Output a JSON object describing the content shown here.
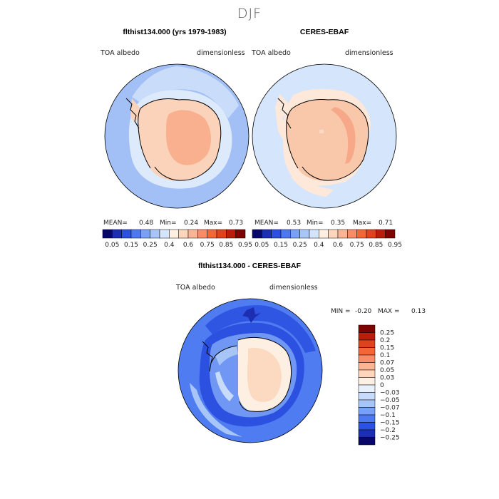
{
  "figure": {
    "season": "DJF"
  },
  "panels": [
    {
      "title": "flthist134.000 (yrs 1979-1983)",
      "variable": "TOA albedo",
      "units": "dimensionless",
      "mean_label": "MEAN=",
      "mean": "0.48",
      "min_label": "Min=",
      "min": "0.24",
      "max_label": "Max=",
      "max": "0.73"
    },
    {
      "title": "CERES-EBAF",
      "variable": "TOA albedo",
      "units": "dimensionless",
      "mean_label": "MEAN=",
      "mean": "0.53",
      "min_label": "Min=",
      "min": "0.35",
      "max_label": "Max=",
      "max": "0.71"
    }
  ],
  "colorbar_top": {
    "labels": [
      "0.05",
      "0.15",
      "0.25",
      "0.4",
      "0.6",
      "0.75",
      "0.85",
      "0.95"
    ],
    "colors": [
      "#08086a",
      "#1c2fb2",
      "#2c50e0",
      "#4c78f0",
      "#78a0f5",
      "#a8c5f8",
      "#d4e4fb",
      "#fdf0e2",
      "#fcd5bb",
      "#fbb494",
      "#f88c66",
      "#f26638",
      "#e0421e",
      "#bb1d0c",
      "#7e0303"
    ]
  },
  "difference_panel": {
    "title": "flthist134.000 - CERES-EBAF",
    "variable": "TOA albedo",
    "units": "dimensionless",
    "min_label": "MIN =",
    "min": "-0.20",
    "max_label": "MAX =",
    "max": "0.13"
  },
  "colorbar_diff": {
    "labels": [
      "0.25",
      "0.2",
      "0.15",
      "0.1",
      "0.07",
      "0.05",
      "0.03",
      "0",
      "−0.03",
      "−0.05",
      "−0.07",
      "−0.1",
      "−0.15",
      "−0.2",
      "−0.25"
    ],
    "colors": [
      "#7e0303",
      "#bb1d0c",
      "#e0421e",
      "#f26638",
      "#f88c66",
      "#fbb494",
      "#fcd5bb",
      "#fdf0e2",
      "#e8f0fc",
      "#c8dbfa",
      "#a8c5f8",
      "#78a0f5",
      "#4c78f0",
      "#2c50e0",
      "#1c2fb2",
      "#08086a"
    ]
  }
}
